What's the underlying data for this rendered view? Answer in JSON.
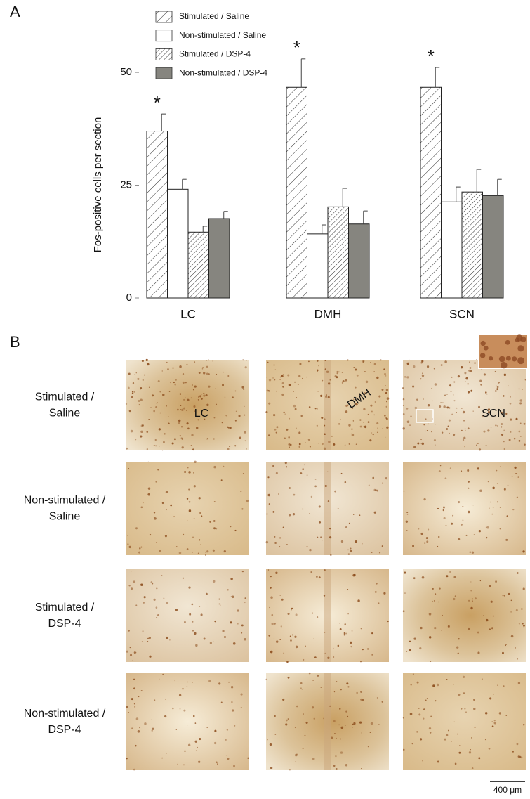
{
  "panel_labels": [
    "A",
    "B"
  ],
  "chart_data": {
    "type": "bar",
    "y_label": "Fos-positive cells per section",
    "categories": [
      "LC",
      "DMH",
      "SCN"
    ],
    "ylim": [
      0,
      55
    ],
    "yticks": [
      0,
      25,
      50
    ],
    "grid": false,
    "legend": "top-left",
    "series": [
      {
        "name": "Stimulated / Saline",
        "color": "#ffffff",
        "hatch": "sparse",
        "values": [
          37,
          46.7,
          46.7
        ],
        "errors": [
          3.8,
          6.3,
          4.4
        ],
        "markers": [
          "*",
          "*",
          "*"
        ]
      },
      {
        "name": "Non-stimulated / Saline",
        "color": "#ffffff",
        "hatch": "none",
        "values": [
          24.1,
          14.2,
          21.3
        ],
        "errors": [
          2.2,
          2,
          3.3
        ]
      },
      {
        "name": "Stimulated / DSP-4",
        "color": "#ffffff",
        "hatch": "dense",
        "values": [
          14.6,
          20.2,
          23.5
        ],
        "errors": [
          1.3,
          4.1,
          5
        ]
      },
      {
        "name": "Non-stimulated / DSP-4",
        "color": "#86857f",
        "hatch": "none",
        "values": [
          17.6,
          16.4,
          22.7
        ],
        "errors": [
          1.6,
          2.9,
          3.6
        ]
      }
    ]
  },
  "micrographs": {
    "row_labels": [
      [
        "Stimulated /",
        "Saline"
      ],
      [
        "Non-stimulated /",
        "Saline"
      ],
      [
        "Stimulated /",
        "DSP-4"
      ],
      [
        "Non-stimulated /",
        "DSP-4"
      ]
    ],
    "region_labels": [
      "LC",
      "DMH",
      "SCN"
    ],
    "scale_bar": "400 μm"
  }
}
